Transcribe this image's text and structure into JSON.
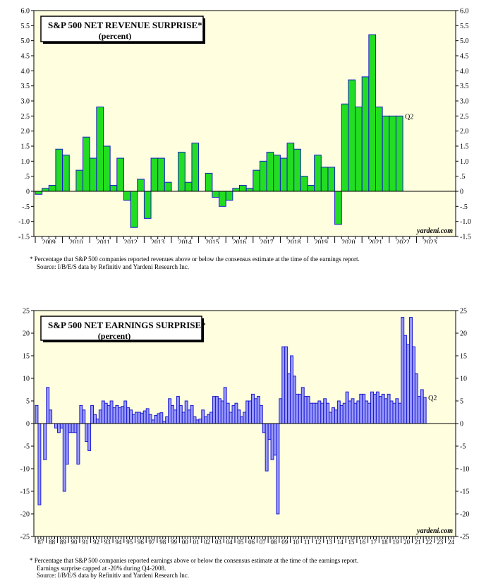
{
  "chart_data": [
    {
      "type": "bar",
      "title": "S&P 500 NET REVENUE SURPRISE*",
      "subtitle": "(percent)",
      "ylim": [
        -1.5,
        6.0
      ],
      "y_ticks": [
        "6.0",
        "5.5",
        "5.0",
        "4.5",
        "4.0",
        "3.5",
        "3.0",
        "2.5",
        "2.0",
        "1.5",
        "1.0",
        ".5",
        "0",
        "-.5",
        "-1.0",
        "-1.5"
      ],
      "x_start": 2009,
      "x_labels": [
        "2009",
        "2010",
        "2011",
        "2012",
        "2013",
        "2014",
        "2015",
        "2016",
        "2017",
        "2018",
        "2019",
        "2020",
        "2021",
        "2022",
        "2023"
      ],
      "values": [
        -0.1,
        0.1,
        0.2,
        1.4,
        1.2,
        0,
        0.7,
        1.8,
        1.1,
        2.8,
        1.5,
        0.2,
        1.1,
        -0.3,
        -1.2,
        0.4,
        -0.9,
        1.1,
        1.1,
        0.3,
        0,
        1.3,
        0.3,
        1.6,
        0,
        0.6,
        -0.2,
        -0.5,
        -0.3,
        0.1,
        0.2,
        0.1,
        0.7,
        1.0,
        1.3,
        1.2,
        1.1,
        1.6,
        1.4,
        0.5,
        0.2,
        1.2,
        0.8,
        0.8,
        -1.1,
        2.9,
        3.7,
        2.8,
        3.8,
        5.2,
        2.8,
        2.5,
        2.5,
        2.5
      ],
      "end_label": "Q2",
      "bar_color": "#22dd22",
      "watermark": "yardeni.com"
    },
    {
      "type": "bar",
      "title": "S&P 500 NET EARNINGS SURPRISE*",
      "subtitle": "(percent)",
      "ylim": [
        -25,
        25
      ],
      "y_ticks": [
        "25",
        "20",
        "15",
        "10",
        "5",
        "0",
        "-5",
        "-10",
        "-15",
        "-20",
        "-25"
      ],
      "x_start": 1987,
      "x_labels": [
        "87",
        "88",
        "89",
        "90",
        "91",
        "92",
        "93",
        "94",
        "95",
        "96",
        "97",
        "98",
        "99",
        "00",
        "01",
        "02",
        "03",
        "04",
        "05",
        "06",
        "07",
        "08",
        "09",
        "10",
        "11",
        "12",
        "13",
        "14",
        "15",
        "16",
        "17",
        "18",
        "19",
        "20",
        "21",
        "22",
        "23",
        "24"
      ],
      "values": [
        4,
        -18,
        0,
        -8,
        8,
        3,
        0,
        -1,
        -2,
        -1,
        -15,
        -9,
        -2,
        -2,
        -2,
        -9,
        4,
        3,
        -4,
        -6,
        4,
        2,
        1,
        3,
        5,
        4.5,
        4,
        5,
        3.5,
        4,
        3.5,
        3.8,
        5,
        3.5,
        3,
        2,
        2.5,
        2.5,
        2.3,
        2.8,
        3.3,
        2,
        0.8,
        1.8,
        2.2,
        2.4,
        0.5,
        1.5,
        5.5,
        4,
        3,
        6,
        4,
        2.5,
        5,
        3,
        4,
        1.5,
        0.8,
        1,
        3,
        1.5,
        2,
        2.5,
        6,
        6,
        5.5,
        5,
        8,
        4.5,
        2.5,
        4,
        4.5,
        3,
        1.5,
        2.5,
        5,
        5,
        6.5,
        5.5,
        6,
        4,
        -2,
        -10.5,
        -3.5,
        -8,
        -7,
        -20,
        5.5,
        17,
        17,
        11,
        15,
        10.5,
        6.5,
        6.5,
        8,
        6,
        6,
        4.5,
        4.5,
        4.5,
        5,
        4.5,
        5.5,
        4.5,
        2.5,
        3.5,
        3,
        5,
        4,
        4.5,
        7,
        5,
        5.5,
        4.5,
        5,
        6.5,
        6.5,
        5,
        4.5,
        7,
        6.5,
        7,
        6,
        6.5,
        5.5,
        6.5,
        5,
        4.5,
        5.5,
        4.5,
        23.5,
        19.5,
        17.5,
        23.5,
        17,
        11,
        6,
        7.5,
        5.8
      ],
      "end_label": "Q2",
      "bar_color": "#9999ff",
      "watermark": "yardeni.com"
    }
  ],
  "notes": {
    "revenue": [
      "* Percentage that S&P 500 companies reported revenues above or below the consensus estimate at the time of the earnings report.",
      "Source: I/B/E/S data by Refinitiv and Yardeni Research Inc."
    ],
    "earnings": [
      "* Percentage that S&P 500 companies reported earnings above or below the consensus estimate at the time of the earnings report.",
      "Earnings surprise capped at -20% during Q4-2008.",
      "Source: I/B/E/S data by Refinitiv and Yardeni Research Inc."
    ]
  }
}
